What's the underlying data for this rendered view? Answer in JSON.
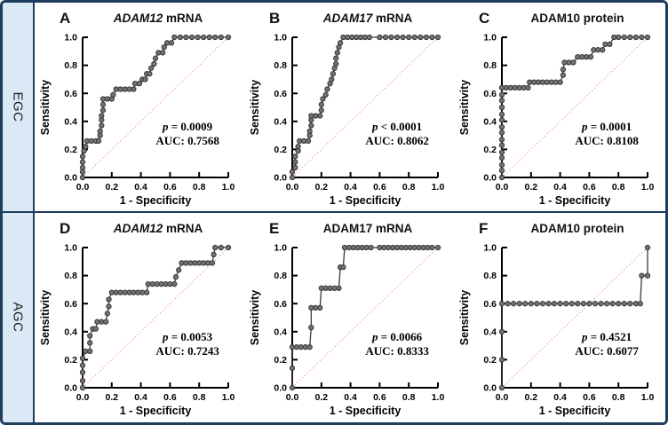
{
  "figure": {
    "rows": [
      {
        "label": "EGC"
      },
      {
        "label": "AGC"
      }
    ],
    "style": {
      "frame_color": "#1f3d5c",
      "sidebar_bg": "#dbe8f6",
      "marker_fill": "#747474",
      "marker_stroke": "#3a3a3a",
      "curve_color": "#3a3a3a",
      "diagonal_color": "#f28989",
      "axis_color": "#000000"
    }
  },
  "chart_data": [
    {
      "type": "line",
      "subtype": "roc",
      "panel": "A",
      "row": "EGC",
      "title_parts": [
        {
          "text": "ADAM12",
          "italic": true
        },
        {
          "text": " mRNA",
          "italic": false
        }
      ],
      "stats": {
        "p_symbol": "p",
        "p_rest": " = 0.0009",
        "auc": "AUC: 0.7568"
      },
      "xlabel": "1 - Specificity",
      "ylabel": "Sensitivity",
      "xlim": [
        0,
        1
      ],
      "ylim": [
        0,
        1
      ],
      "tick_labels": [
        "0.0",
        "0.2",
        "0.4",
        "0.6",
        "0.8",
        "1.0"
      ],
      "diagonal_reference": true,
      "points": [
        [
          0,
          0
        ],
        [
          0,
          0.04
        ],
        [
          0,
          0.07
        ],
        [
          0,
          0.11
        ],
        [
          0,
          0.15
        ],
        [
          0.01,
          0.19
        ],
        [
          0.02,
          0.22
        ],
        [
          0.03,
          0.26
        ],
        [
          0.06,
          0.26
        ],
        [
          0.09,
          0.26
        ],
        [
          0.11,
          0.26
        ],
        [
          0.12,
          0.3
        ],
        [
          0.12,
          0.33
        ],
        [
          0.13,
          0.37
        ],
        [
          0.13,
          0.41
        ],
        [
          0.13,
          0.44
        ],
        [
          0.14,
          0.48
        ],
        [
          0.14,
          0.52
        ],
        [
          0.14,
          0.56
        ],
        [
          0.17,
          0.56
        ],
        [
          0.2,
          0.56
        ],
        [
          0.21,
          0.59
        ],
        [
          0.23,
          0.63
        ],
        [
          0.26,
          0.63
        ],
        [
          0.29,
          0.63
        ],
        [
          0.32,
          0.63
        ],
        [
          0.35,
          0.63
        ],
        [
          0.36,
          0.67
        ],
        [
          0.39,
          0.67
        ],
        [
          0.41,
          0.7
        ],
        [
          0.43,
          0.7
        ],
        [
          0.44,
          0.74
        ],
        [
          0.46,
          0.74
        ],
        [
          0.47,
          0.78
        ],
        [
          0.49,
          0.81
        ],
        [
          0.5,
          0.85
        ],
        [
          0.52,
          0.89
        ],
        [
          0.55,
          0.89
        ],
        [
          0.56,
          0.93
        ],
        [
          0.58,
          0.96
        ],
        [
          0.61,
          0.96
        ],
        [
          0.63,
          1
        ],
        [
          0.67,
          1
        ],
        [
          0.71,
          1
        ],
        [
          0.75,
          1
        ],
        [
          0.79,
          1
        ],
        [
          0.83,
          1
        ],
        [
          0.87,
          1
        ],
        [
          0.91,
          1
        ],
        [
          0.95,
          1
        ],
        [
          1,
          1
        ]
      ]
    },
    {
      "type": "line",
      "subtype": "roc",
      "panel": "B",
      "row": "EGC",
      "title_parts": [
        {
          "text": "ADAM17",
          "italic": true
        },
        {
          "text": " mRNA",
          "italic": false
        }
      ],
      "stats": {
        "p_symbol": "p",
        "p_rest": " < 0.0001",
        "auc": "AUC: 0.8062"
      },
      "xlabel": "1 - Specificity",
      "ylabel": "Sensitivity",
      "xlim": [
        0,
        1
      ],
      "ylim": [
        0,
        1
      ],
      "tick_labels": [
        "0.0",
        "0.2",
        "0.4",
        "0.6",
        "0.8",
        "1.0"
      ],
      "diagonal_reference": true,
      "points": [
        [
          0,
          0
        ],
        [
          0,
          0.04
        ],
        [
          0.02,
          0.07
        ],
        [
          0.02,
          0.11
        ],
        [
          0.02,
          0.15
        ],
        [
          0.04,
          0.19
        ],
        [
          0.04,
          0.22
        ],
        [
          0.05,
          0.26
        ],
        [
          0.08,
          0.26
        ],
        [
          0.11,
          0.26
        ],
        [
          0.12,
          0.3
        ],
        [
          0.12,
          0.33
        ],
        [
          0.13,
          0.37
        ],
        [
          0.13,
          0.41
        ],
        [
          0.13,
          0.44
        ],
        [
          0.16,
          0.44
        ],
        [
          0.19,
          0.44
        ],
        [
          0.2,
          0.48
        ],
        [
          0.2,
          0.52
        ],
        [
          0.21,
          0.56
        ],
        [
          0.23,
          0.59
        ],
        [
          0.24,
          0.63
        ],
        [
          0.26,
          0.67
        ],
        [
          0.27,
          0.7
        ],
        [
          0.28,
          0.74
        ],
        [
          0.29,
          0.78
        ],
        [
          0.3,
          0.81
        ],
        [
          0.3,
          0.85
        ],
        [
          0.31,
          0.89
        ],
        [
          0.32,
          0.93
        ],
        [
          0.33,
          0.96
        ],
        [
          0.35,
          1
        ],
        [
          0.38,
          1
        ],
        [
          0.41,
          1
        ],
        [
          0.44,
          1
        ],
        [
          0.47,
          1
        ],
        [
          0.5,
          1
        ],
        [
          0.53,
          1
        ],
        [
          0.6,
          1
        ],
        [
          0.64,
          1
        ],
        [
          0.68,
          1
        ],
        [
          0.72,
          1
        ],
        [
          0.76,
          1
        ],
        [
          0.8,
          1
        ],
        [
          0.84,
          1
        ],
        [
          0.88,
          1
        ],
        [
          0.92,
          1
        ],
        [
          0.96,
          1
        ],
        [
          1,
          1
        ]
      ]
    },
    {
      "type": "line",
      "subtype": "roc",
      "panel": "C",
      "row": "EGC",
      "title_parts": [
        {
          "text": "ADAM10 protein",
          "italic": false
        }
      ],
      "stats": {
        "p_symbol": "p",
        "p_rest": " = 0.0001",
        "auc": "AUC: 0.8108"
      },
      "xlabel": "1 - Specificity",
      "ylabel": "Sensitivity",
      "xlim": [
        0,
        1
      ],
      "ylim": [
        0,
        1
      ],
      "tick_labels": [
        "0.0",
        "0.2",
        "0.4",
        "0.6",
        "0.8",
        "1.0"
      ],
      "diagonal_reference": true,
      "points": [
        [
          0,
          0
        ],
        [
          0,
          0.05
        ],
        [
          0,
          0.09
        ],
        [
          0,
          0.14
        ],
        [
          0,
          0.18
        ],
        [
          0,
          0.23
        ],
        [
          0,
          0.27
        ],
        [
          0,
          0.32
        ],
        [
          0,
          0.36
        ],
        [
          0,
          0.41
        ],
        [
          0,
          0.45
        ],
        [
          0,
          0.5
        ],
        [
          0,
          0.55
        ],
        [
          0,
          0.59
        ],
        [
          0,
          0.64
        ],
        [
          0.03,
          0.64
        ],
        [
          0.06,
          0.64
        ],
        [
          0.09,
          0.64
        ],
        [
          0.12,
          0.64
        ],
        [
          0.15,
          0.64
        ],
        [
          0.18,
          0.64
        ],
        [
          0.19,
          0.68
        ],
        [
          0.22,
          0.68
        ],
        [
          0.25,
          0.68
        ],
        [
          0.28,
          0.68
        ],
        [
          0.31,
          0.68
        ],
        [
          0.34,
          0.68
        ],
        [
          0.37,
          0.68
        ],
        [
          0.4,
          0.68
        ],
        [
          0.42,
          0.73
        ],
        [
          0.42,
          0.77
        ],
        [
          0.43,
          0.82
        ],
        [
          0.46,
          0.82
        ],
        [
          0.49,
          0.82
        ],
        [
          0.52,
          0.86
        ],
        [
          0.55,
          0.86
        ],
        [
          0.58,
          0.86
        ],
        [
          0.61,
          0.86
        ],
        [
          0.63,
          0.91
        ],
        [
          0.66,
          0.91
        ],
        [
          0.69,
          0.91
        ],
        [
          0.71,
          0.95
        ],
        [
          0.74,
          0.95
        ],
        [
          0.77,
          1
        ],
        [
          0.8,
          1
        ],
        [
          0.84,
          1
        ],
        [
          0.88,
          1
        ],
        [
          0.92,
          1
        ],
        [
          0.96,
          1
        ],
        [
          1,
          1
        ]
      ]
    },
    {
      "type": "line",
      "subtype": "roc",
      "panel": "D",
      "row": "AGC",
      "title_parts": [
        {
          "text": "ADAM12",
          "italic": true
        },
        {
          "text": " mRNA",
          "italic": false
        }
      ],
      "stats": {
        "p_symbol": "p",
        "p_rest": " = 0.0053",
        "auc": "AUC: 0.7243"
      },
      "xlabel": "1 - Specificity",
      "ylabel": "Sensitivity",
      "xlim": [
        0,
        1
      ],
      "ylim": [
        0,
        1
      ],
      "tick_labels": [
        "0.0",
        "0.2",
        "0.4",
        "0.6",
        "0.8",
        "1.0"
      ],
      "diagonal_reference": true,
      "points": [
        [
          0,
          0
        ],
        [
          0,
          0.05
        ],
        [
          0,
          0.11
        ],
        [
          0,
          0.16
        ],
        [
          0,
          0.21
        ],
        [
          0.02,
          0.26
        ],
        [
          0.05,
          0.26
        ],
        [
          0.05,
          0.32
        ],
        [
          0.05,
          0.37
        ],
        [
          0.07,
          0.42
        ],
        [
          0.09,
          0.42
        ],
        [
          0.1,
          0.47
        ],
        [
          0.13,
          0.47
        ],
        [
          0.16,
          0.47
        ],
        [
          0.17,
          0.53
        ],
        [
          0.18,
          0.58
        ],
        [
          0.18,
          0.63
        ],
        [
          0.2,
          0.68
        ],
        [
          0.23,
          0.68
        ],
        [
          0.26,
          0.68
        ],
        [
          0.29,
          0.68
        ],
        [
          0.32,
          0.68
        ],
        [
          0.35,
          0.68
        ],
        [
          0.38,
          0.68
        ],
        [
          0.41,
          0.68
        ],
        [
          0.44,
          0.68
        ],
        [
          0.45,
          0.74
        ],
        [
          0.48,
          0.74
        ],
        [
          0.51,
          0.74
        ],
        [
          0.54,
          0.74
        ],
        [
          0.57,
          0.74
        ],
        [
          0.6,
          0.74
        ],
        [
          0.63,
          0.74
        ],
        [
          0.64,
          0.79
        ],
        [
          0.66,
          0.84
        ],
        [
          0.68,
          0.89
        ],
        [
          0.71,
          0.89
        ],
        [
          0.74,
          0.89
        ],
        [
          0.77,
          0.89
        ],
        [
          0.8,
          0.89
        ],
        [
          0.83,
          0.89
        ],
        [
          0.86,
          0.89
        ],
        [
          0.89,
          0.89
        ],
        [
          0.9,
          0.95
        ],
        [
          0.91,
          1
        ],
        [
          0.95,
          1
        ],
        [
          1,
          1
        ]
      ]
    },
    {
      "type": "line",
      "subtype": "roc",
      "panel": "E",
      "row": "AGC",
      "title_parts": [
        {
          "text": "ADAM17 mRNA",
          "italic": false
        }
      ],
      "stats": {
        "p_symbol": "p",
        "p_rest": " = 0.0066",
        "auc": "AUC: 0.8333"
      },
      "xlabel": "1 - Specificity",
      "ylabel": "Sensitivity",
      "xlim": [
        0,
        1
      ],
      "ylim": [
        0,
        1
      ],
      "tick_labels": [
        "0.0",
        "0.2",
        "0.4",
        "0.6",
        "0.8",
        "1.0"
      ],
      "diagonal_reference": true,
      "points": [
        [
          0,
          0
        ],
        [
          0,
          0.14
        ],
        [
          0,
          0.29
        ],
        [
          0.03,
          0.29
        ],
        [
          0.06,
          0.29
        ],
        [
          0.09,
          0.29
        ],
        [
          0.12,
          0.29
        ],
        [
          0.13,
          0.43
        ],
        [
          0.13,
          0.57
        ],
        [
          0.16,
          0.57
        ],
        [
          0.19,
          0.57
        ],
        [
          0.2,
          0.71
        ],
        [
          0.23,
          0.71
        ],
        [
          0.26,
          0.71
        ],
        [
          0.29,
          0.71
        ],
        [
          0.32,
          0.71
        ],
        [
          0.33,
          0.86
        ],
        [
          0.35,
          0.86
        ],
        [
          0.36,
          1
        ],
        [
          0.39,
          1
        ],
        [
          0.42,
          1
        ],
        [
          0.45,
          1
        ],
        [
          0.48,
          1
        ],
        [
          0.51,
          1
        ],
        [
          0.54,
          1
        ],
        [
          0.6,
          1
        ],
        [
          0.63,
          1
        ],
        [
          0.66,
          1
        ],
        [
          0.69,
          1
        ],
        [
          0.72,
          1
        ],
        [
          0.75,
          1
        ],
        [
          0.78,
          1
        ],
        [
          0.81,
          1
        ],
        [
          0.84,
          1
        ],
        [
          0.87,
          1
        ],
        [
          0.9,
          1
        ],
        [
          0.93,
          1
        ],
        [
          0.96,
          1
        ],
        [
          1,
          1
        ]
      ]
    },
    {
      "type": "line",
      "subtype": "roc",
      "panel": "F",
      "row": "AGC",
      "title_parts": [
        {
          "text": "ADAM10 protein",
          "italic": false
        }
      ],
      "stats": {
        "p_symbol": "p",
        "p_rest": " = 0.4521",
        "auc": "AUC: 0.6077"
      },
      "xlabel": "1 - Specificity",
      "ylabel": "Sensitivity",
      "xlim": [
        0,
        1
      ],
      "ylim": [
        0,
        1
      ],
      "tick_labels": [
        "0.0",
        "0.2",
        "0.4",
        "0.6",
        "0.8",
        "1.0"
      ],
      "diagonal_reference": true,
      "points": [
        [
          0,
          0
        ],
        [
          0,
          0.2
        ],
        [
          0,
          0.4
        ],
        [
          0,
          0.6
        ],
        [
          0.04,
          0.6
        ],
        [
          0.08,
          0.6
        ],
        [
          0.12,
          0.6
        ],
        [
          0.16,
          0.6
        ],
        [
          0.2,
          0.6
        ],
        [
          0.24,
          0.6
        ],
        [
          0.28,
          0.6
        ],
        [
          0.32,
          0.6
        ],
        [
          0.36,
          0.6
        ],
        [
          0.4,
          0.6
        ],
        [
          0.44,
          0.6
        ],
        [
          0.48,
          0.6
        ],
        [
          0.52,
          0.6
        ],
        [
          0.56,
          0.6
        ],
        [
          0.6,
          0.6
        ],
        [
          0.64,
          0.6
        ],
        [
          0.68,
          0.6
        ],
        [
          0.72,
          0.6
        ],
        [
          0.76,
          0.6
        ],
        [
          0.8,
          0.6
        ],
        [
          0.84,
          0.6
        ],
        [
          0.88,
          0.6
        ],
        [
          0.92,
          0.6
        ],
        [
          0.95,
          0.6
        ],
        [
          0.96,
          0.8
        ],
        [
          1,
          0.8
        ],
        [
          1,
          1
        ]
      ]
    }
  ]
}
